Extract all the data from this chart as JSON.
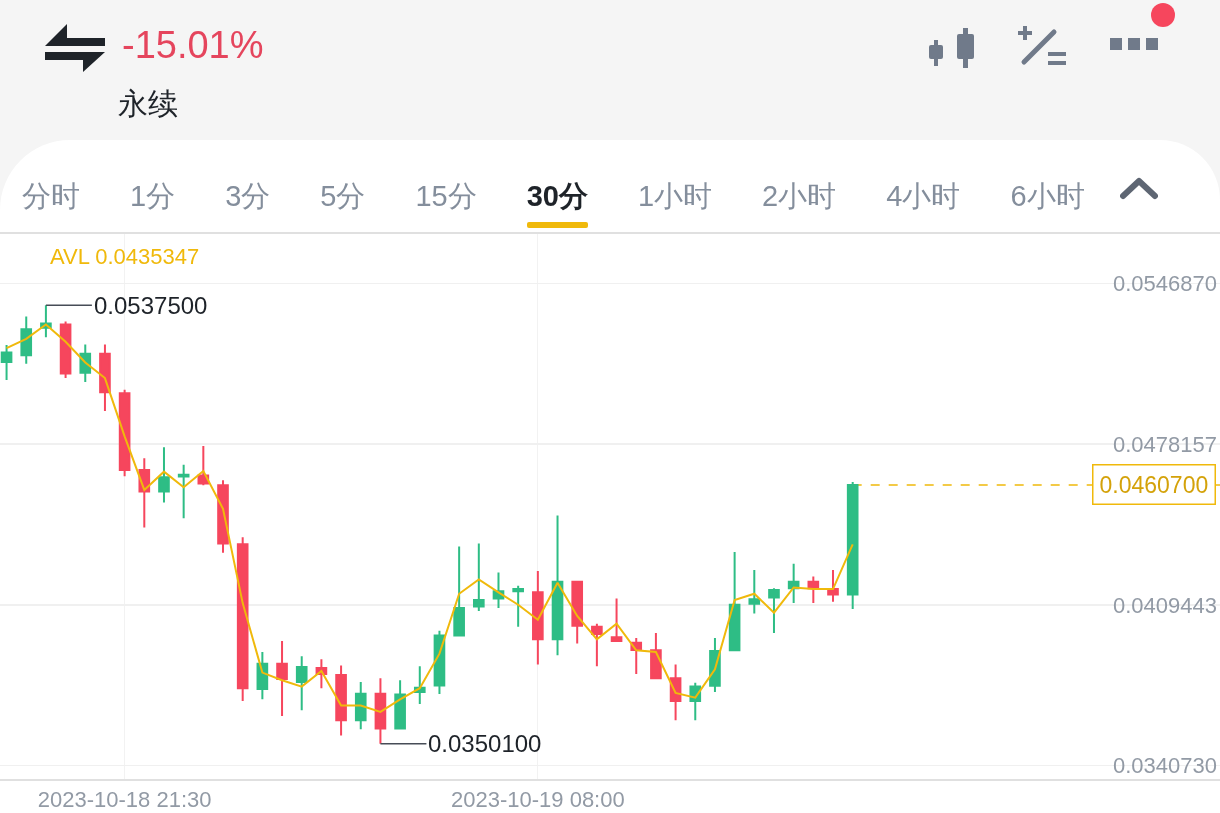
{
  "chart_data": {
    "type": "candlestick",
    "title": "-15.01%",
    "subtitle": "永续",
    "x": [
      "2023-10-18T18:30",
      "2023-10-18T19:00",
      "2023-10-18T19:30",
      "2023-10-18T20:00",
      "2023-10-18T20:30",
      "2023-10-18T21:00",
      "2023-10-18T21:30",
      "2023-10-18T22:00",
      "2023-10-18T22:30",
      "2023-10-18T23:00",
      "2023-10-18T23:30",
      "2023-10-19T00:00",
      "2023-10-19T00:30",
      "2023-10-19T01:00",
      "2023-10-19T01:30",
      "2023-10-19T02:00",
      "2023-10-19T02:30",
      "2023-10-19T03:00",
      "2023-10-19T03:30",
      "2023-10-19T04:00",
      "2023-10-19T04:30",
      "2023-10-19T05:00",
      "2023-10-19T05:30",
      "2023-10-19T06:00",
      "2023-10-19T06:30",
      "2023-10-19T07:00",
      "2023-10-19T07:30",
      "2023-10-19T08:00",
      "2023-10-19T08:30",
      "2023-10-19T09:00",
      "2023-10-19T09:30",
      "2023-10-19T10:00",
      "2023-10-19T10:30",
      "2023-10-19T11:00",
      "2023-10-19T11:30",
      "2023-10-19T12:00",
      "2023-10-19T12:30",
      "2023-10-19T13:00",
      "2023-10-19T13:30",
      "2023-10-19T14:00",
      "2023-10-19T14:30",
      "2023-10-19T15:00",
      "2023-10-19T15:30",
      "2023-10-19T16:00"
    ],
    "ohlc": [
      [
        0.05133,
        0.05205,
        0.05056,
        0.05173
      ],
      [
        0.05162,
        0.05327,
        0.05125,
        0.05273
      ],
      [
        0.05279,
        0.05375,
        0.05239,
        0.05297
      ],
      [
        0.05293,
        0.05306,
        0.05064,
        0.05084
      ],
      [
        0.05087,
        0.05208,
        0.05047,
        0.05168
      ],
      [
        0.05168,
        0.05208,
        0.04923,
        0.05003
      ],
      [
        0.04999,
        0.05014,
        0.04644,
        0.04671
      ],
      [
        0.04671,
        0.04721,
        0.04425,
        0.04579
      ],
      [
        0.04579,
        0.04768,
        0.04532,
        0.0464
      ],
      [
        0.04643,
        0.04694,
        0.04465,
        0.04651
      ],
      [
        0.04647,
        0.04774,
        0.04606,
        0.04613
      ],
      [
        0.04606,
        0.04627,
        0.04317,
        0.04357
      ],
      [
        0.04354,
        0.04384,
        0.03684,
        0.03738
      ],
      [
        0.03735,
        0.03893,
        0.03691,
        0.03843
      ],
      [
        0.03843,
        0.0394,
        0.03619,
        0.03778
      ],
      [
        0.03765,
        0.03875,
        0.03644,
        0.03829
      ],
      [
        0.03825,
        0.03862,
        0.03738,
        0.03799
      ],
      [
        0.03795,
        0.03835,
        0.03536,
        0.03601
      ],
      [
        0.03601,
        0.03765,
        0.03563,
        0.03714
      ],
      [
        0.03714,
        0.03781,
        0.03501,
        0.03566
      ],
      [
        0.03566,
        0.03772,
        0.03566,
        0.03711
      ],
      [
        0.03722,
        0.03832,
        0.03671,
        0.0374
      ],
      [
        0.0375,
        0.03984,
        0.03713,
        0.03963
      ],
      [
        0.03963,
        0.04344,
        0.03963,
        0.04081
      ],
      [
        0.04088,
        0.04357,
        0.04068,
        0.04115
      ],
      [
        0.04122,
        0.04233,
        0.04081,
        0.04153
      ],
      [
        0.04153,
        0.04176,
        0.04001,
        0.04162
      ],
      [
        0.04148,
        0.04239,
        0.03839,
        0.03947
      ],
      [
        0.03947,
        0.04476,
        0.03879,
        0.04193
      ],
      [
        0.04193,
        0.04193,
        0.03929,
        0.04005
      ],
      [
        0.04001,
        0.04014,
        0.03832,
        0.0397
      ],
      [
        0.03956,
        0.04122,
        0.03937,
        0.0394
      ],
      [
        0.03933,
        0.03953,
        0.03799,
        0.03902
      ],
      [
        0.039,
        0.03974,
        0.03781,
        0.03781
      ],
      [
        0.03781,
        0.03839,
        0.03601,
        0.03684
      ],
      [
        0.03684,
        0.03762,
        0.03601,
        0.03745
      ],
      [
        0.03749,
        0.03953,
        0.03722,
        0.03897
      ],
      [
        0.039,
        0.0432,
        0.039,
        0.04095
      ],
      [
        0.04099,
        0.04243,
        0.04058,
        0.04118
      ],
      [
        0.04126,
        0.04166,
        0.03974,
        0.04158
      ],
      [
        0.04166,
        0.0427,
        0.04102,
        0.04193
      ],
      [
        0.04193,
        0.04216,
        0.04102,
        0.04166
      ],
      [
        0.04162,
        0.04243,
        0.04108,
        0.04139
      ],
      [
        0.04139,
        0.0462,
        0.04077,
        0.04607
      ]
    ],
    "colors": [
      "#2ebd85",
      "#2ebd85",
      "#2ebd85",
      "#f6465d",
      "#2ebd85",
      "#f6465d",
      "#f6465d",
      "#f6465d",
      "#2ebd85",
      "#2ebd85",
      "#f6465d",
      "#f6465d",
      "#f6465d",
      "#2ebd85",
      "#f6465d",
      "#2ebd85",
      "#f6465d",
      "#f6465d",
      "#2ebd85",
      "#f6465d",
      "#2ebd85",
      "#2ebd85",
      "#2ebd85",
      "#2ebd85",
      "#2ebd85",
      "#2ebd85",
      "#2ebd85",
      "#f6465d",
      "#2ebd85",
      "#f6465d",
      "#f6465d",
      "#f6465d",
      "#f6465d",
      "#f6465d",
      "#f6465d",
      "#2ebd85",
      "#2ebd85",
      "#2ebd85",
      "#2ebd85",
      "#2ebd85",
      "#2ebd85",
      "#f6465d",
      "#f6465d",
      "#2ebd85"
    ],
    "series": [
      {
        "type": "line",
        "name": "AVL 0.0435347",
        "color": "#f0b90b",
        "values": [
          0.05192,
          0.05232,
          0.05293,
          0.05219,
          0.05131,
          0.05064,
          0.04815,
          0.04586,
          0.04664,
          0.04597,
          0.04667,
          0.04505,
          0.04102,
          0.03805,
          0.03772,
          0.03745,
          0.03812,
          0.03664,
          0.03664,
          0.03637,
          0.0369,
          0.03738,
          0.03886,
          0.04142,
          0.04203,
          0.04148,
          0.04095,
          0.04031,
          0.04189,
          0.04047,
          0.03947,
          0.04014,
          0.039,
          0.03893,
          0.03718,
          0.03698,
          0.03819,
          0.04115,
          0.04142,
          0.04061,
          0.04169,
          0.04162,
          0.04162,
          0.04353
        ]
      }
    ],
    "xlim": [
      "2023-10-18T18:20",
      "2023-10-20T01:20"
    ],
    "xticks": [
      {
        "value": "2023-10-18T21:30",
        "label": "2023-10-18 21:30"
      },
      {
        "value": "2023-10-19T08:00",
        "label": "2023-10-19 08:00"
      }
    ],
    "ylim": [
      0.0335,
      0.0568
    ],
    "yticks": [
      {
        "value": 0.054687,
        "label": "0.0546870"
      },
      {
        "value": 0.0478157,
        "label": "0.0478157"
      },
      {
        "value": 0.0409443,
        "label": "0.0409443"
      },
      {
        "value": 0.034073,
        "label": "0.0340730"
      }
    ],
    "grid": true,
    "ref_lines": [
      {
        "axis": "y",
        "value": 0.04607,
        "label": "0.0460700",
        "color": "#f0b90b",
        "line_style": "dashed"
      }
    ],
    "annotations": [
      "分时",
      "1分",
      "3分",
      "5分",
      "15分",
      "30分",
      "1小时",
      "2小时",
      "4小时",
      "6小时",
      {
        "text": "0.0537500",
        "x": "2023-10-18T19:30",
        "y": 0.05375
      },
      {
        "text": "0.0350100",
        "x": "2023-10-19T04:00",
        "y": 0.03501
      }
    ]
  }
}
